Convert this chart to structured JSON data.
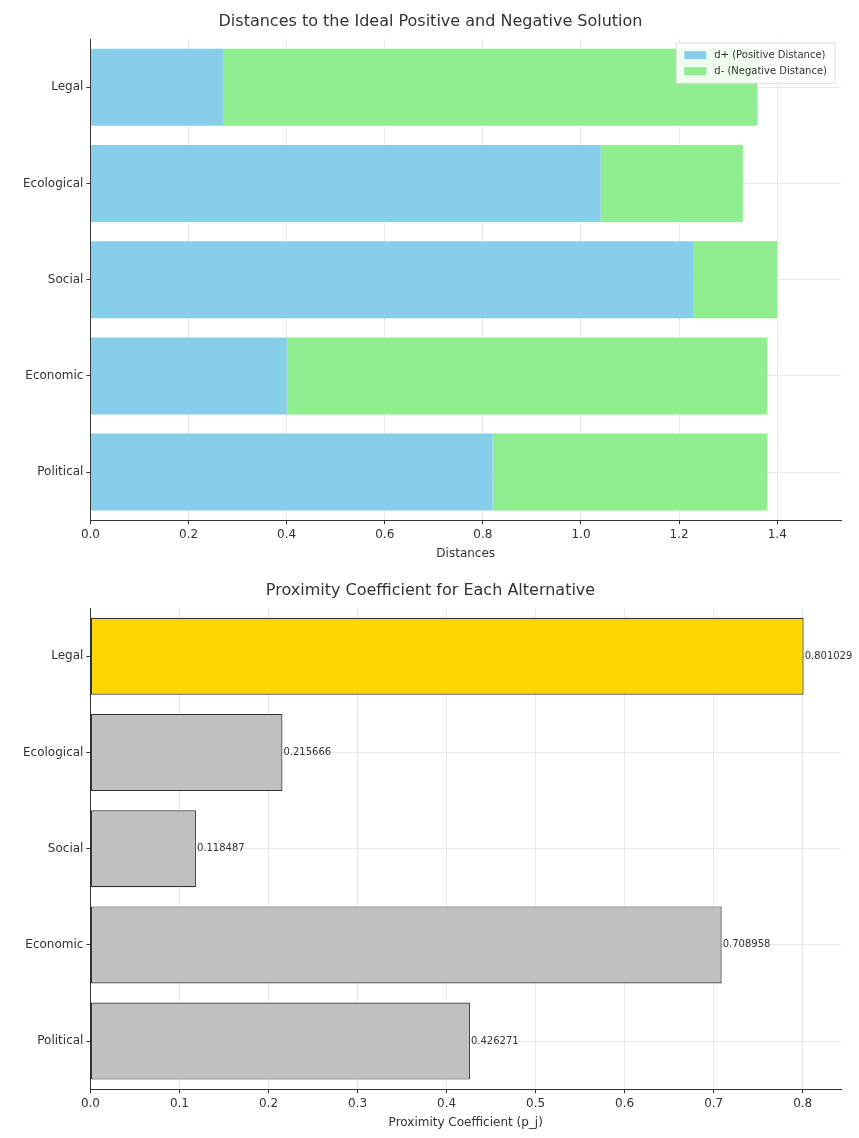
{
  "chart_data": [
    {
      "type": "bar",
      "title": "Distances to the Ideal Positive and Negative Solution",
      "xlabel": "Distances",
      "orientation": "horizontal",
      "stacked": true,
      "categories": [
        "Legal",
        "Ecological",
        "Social",
        "Economic",
        "Political"
      ],
      "series": [
        {
          "name": "d+ (Positive Distance)",
          "color": "#87ceeb",
          "values": [
            0.27,
            1.04,
            1.23,
            0.4,
            0.82
          ]
        },
        {
          "name": "d- (Negative Distance)",
          "color": "#90ee90",
          "values": [
            1.09,
            0.29,
            0.17,
            0.98,
            0.56
          ]
        }
      ],
      "xlim": [
        0,
        1.53
      ],
      "xticks": [
        {
          "value": 0,
          "label": "0.0"
        },
        {
          "value": 0.2,
          "label": "0.2"
        },
        {
          "value": 0.4,
          "label": "0.4"
        },
        {
          "value": 0.6,
          "label": "0.6"
        },
        {
          "value": 0.8,
          "label": "0.8"
        },
        {
          "value": 1,
          "label": "1.0"
        },
        {
          "value": 1.2,
          "label": "1.2"
        },
        {
          "value": 1.4,
          "label": "1.4"
        }
      ],
      "grid": true,
      "legend": "top right"
    },
    {
      "type": "bar",
      "title": "Proximity Coefficient for Each Alternative",
      "xlabel": "Proximity Coefficient (p_j)",
      "orientation": "horizontal",
      "categories": [
        "Legal",
        "Ecological",
        "Social",
        "Economic",
        "Political"
      ],
      "values": [
        0.801029,
        0.215666,
        0.118487,
        0.708958,
        0.426271
      ],
      "colors": [
        "#ffd700",
        "#c0c0c0",
        "#c0c0c0",
        "#c0c0c0",
        "#c0c0c0"
      ],
      "data_labels": true,
      "xlim": [
        0,
        0.843
      ],
      "xticks": [
        {
          "value": 0,
          "label": "0.0"
        },
        {
          "value": 0.1,
          "label": "0.1"
        },
        {
          "value": 0.2,
          "label": "0.2"
        },
        {
          "value": 0.3,
          "label": "0.3"
        },
        {
          "value": 0.4,
          "label": "0.4"
        },
        {
          "value": 0.5,
          "label": "0.5"
        },
        {
          "value": 0.6,
          "label": "0.6"
        },
        {
          "value": 0.7,
          "label": "0.7"
        },
        {
          "value": 0.8,
          "label": "0.8"
        }
      ],
      "grid": true
    }
  ]
}
